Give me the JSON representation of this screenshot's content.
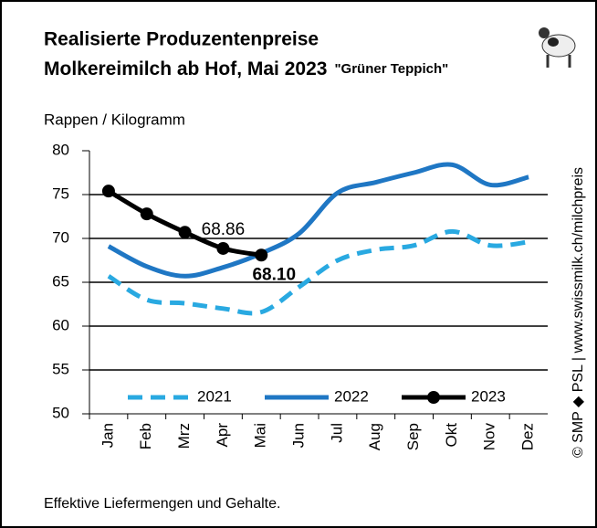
{
  "chart_data": {
    "type": "line",
    "title": "Realisierte Produzentenpreise",
    "subtitle": "Molkereimilch ab Hof, Mai 2023",
    "annotation": "\"Grüner Teppich\"",
    "ylabel": "Rappen / Kilogramm",
    "footnote": "Effektive Liefermengen und Gehalte.",
    "source": "© SMP ◆ PSL | www.swissmilk.ch/milchpreis",
    "categories": [
      "Jan",
      "Feb",
      "Mrz",
      "Apr",
      "Mai",
      "Jun",
      "Jul",
      "Aug",
      "Sep",
      "Okt",
      "Nov",
      "Dez"
    ],
    "series": [
      {
        "name": "2021",
        "color": "#29a9e1",
        "dash": true,
        "values": [
          65.7,
          63.0,
          62.6,
          62.0,
          61.6,
          64.5,
          67.5,
          68.7,
          69.2,
          70.8,
          69.2,
          69.6
        ]
      },
      {
        "name": "2022",
        "color": "#1f77c4",
        "values": [
          69.1,
          66.8,
          65.7,
          66.7,
          68.3,
          70.6,
          75.2,
          76.4,
          77.5,
          78.4,
          76.1,
          77.0
        ]
      },
      {
        "name": "2023",
        "color": "#000000",
        "markers": true,
        "values": [
          75.4,
          72.8,
          70.7,
          68.86,
          68.1,
          null,
          null,
          null,
          null,
          null,
          null,
          null
        ],
        "value_labels": [
          null,
          null,
          null,
          "68.86",
          "68.10",
          null,
          null,
          null,
          null,
          null,
          null,
          null
        ]
      }
    ],
    "ylim": [
      50,
      80
    ],
    "yticks": [
      50,
      55,
      60,
      65,
      70,
      75,
      80
    ],
    "grid": true,
    "legend": "bottom"
  }
}
